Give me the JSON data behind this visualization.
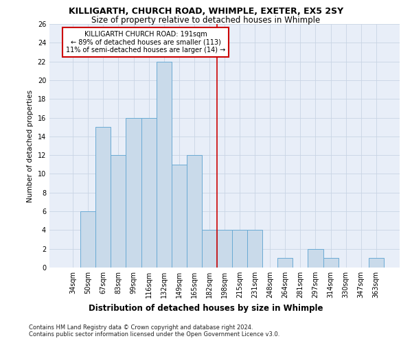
{
  "title": "KILLIGARTH, CHURCH ROAD, WHIMPLE, EXETER, EX5 2SY",
  "subtitle": "Size of property relative to detached houses in Whimple",
  "xlabel": "Distribution of detached houses by size in Whimple",
  "ylabel": "Number of detached properties",
  "categories": [
    "34sqm",
    "50sqm",
    "67sqm",
    "83sqm",
    "99sqm",
    "116sqm",
    "132sqm",
    "149sqm",
    "165sqm",
    "182sqm",
    "198sqm",
    "215sqm",
    "231sqm",
    "248sqm",
    "264sqm",
    "281sqm",
    "297sqm",
    "314sqm",
    "330sqm",
    "347sqm",
    "363sqm"
  ],
  "values": [
    0,
    6,
    15,
    12,
    16,
    16,
    22,
    11,
    12,
    4,
    4,
    4,
    4,
    0,
    1,
    0,
    2,
    1,
    0,
    0,
    1
  ],
  "bar_color": "#c9daea",
  "bar_edge_color": "#6aaad4",
  "property_line_x": 9.5,
  "annotation_text": "KILLIGARTH CHURCH ROAD: 191sqm\n← 89% of detached houses are smaller (113)\n11% of semi-detached houses are larger (14) →",
  "annotation_box_color": "#ffffff",
  "annotation_box_edge": "#cc0000",
  "ylim": [
    0,
    26
  ],
  "yticks": [
    0,
    2,
    4,
    6,
    8,
    10,
    12,
    14,
    16,
    18,
    20,
    22,
    24,
    26
  ],
  "grid_color": "#c8d4e4",
  "background_color": "#e8eef8",
  "footer_line1": "Contains HM Land Registry data © Crown copyright and database right 2024.",
  "footer_line2": "Contains public sector information licensed under the Open Government Licence v3.0.",
  "vline_color": "#cc0000",
  "title_fontsize": 9,
  "subtitle_fontsize": 8.5,
  "annotation_fontsize": 7,
  "tick_fontsize": 7,
  "ylabel_fontsize": 7.5,
  "xlabel_fontsize": 8.5,
  "footer_fontsize": 6
}
